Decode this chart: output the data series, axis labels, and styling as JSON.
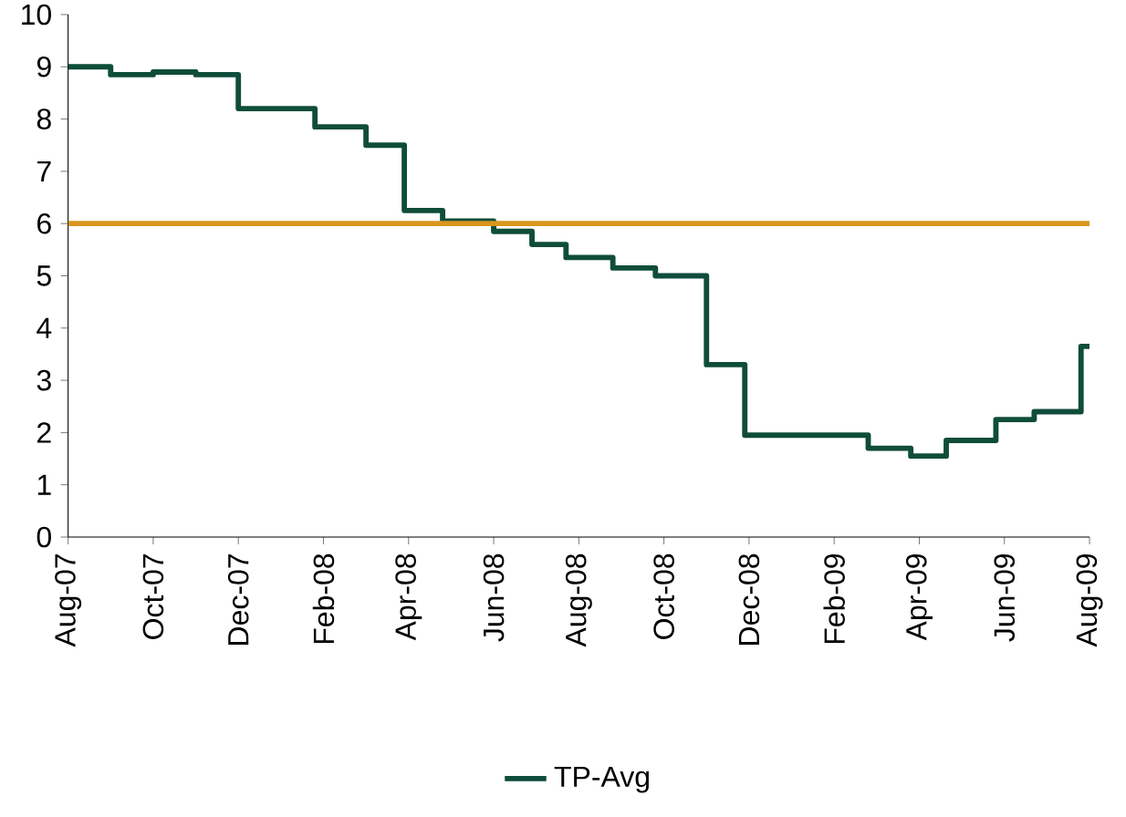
{
  "chart_data": {
    "type": "step",
    "xlim": [
      "2007-08",
      "2009-08"
    ],
    "ylim": [
      0,
      10
    ],
    "yticks": [
      0,
      1,
      2,
      3,
      4,
      5,
      6,
      7,
      8,
      9,
      10
    ],
    "xticks": [
      {
        "value": "2007-08",
        "label": "Aug-07"
      },
      {
        "value": "2007-10",
        "label": "Oct-07"
      },
      {
        "value": "2007-12",
        "label": "Dec-07"
      },
      {
        "value": "2008-02",
        "label": "Feb-08"
      },
      {
        "value": "2008-04",
        "label": "Apr-08"
      },
      {
        "value": "2008-06",
        "label": "Jun-08"
      },
      {
        "value": "2008-08",
        "label": "Aug-08"
      },
      {
        "value": "2008-10",
        "label": "Oct-08"
      },
      {
        "value": "2008-12",
        "label": "Dec-08"
      },
      {
        "value": "2009-02",
        "label": "Feb-09"
      },
      {
        "value": "2009-04",
        "label": "Apr-09"
      },
      {
        "value": "2009-06",
        "label": "Jun-09"
      },
      {
        "value": "2009-08",
        "label": "Aug-09"
      }
    ],
    "legend": "bottom",
    "grid": false,
    "marker": "none",
    "line_style": "solid",
    "series": [
      {
        "name": "TP-Avg",
        "color": "#0f4d3a",
        "x": [
          "2007-08-01",
          "2007-09-01",
          "2007-10-01",
          "2007-11-01",
          "2007-12-01",
          "2008-01-25",
          "2008-03-01",
          "2008-03-28",
          "2008-04-25",
          "2008-06-01",
          "2008-06-28",
          "2008-07-22",
          "2008-08-25",
          "2008-09-25",
          "2008-11-01",
          "2008-11-28",
          "2009-02-25",
          "2009-03-25",
          "2009-04-20",
          "2009-05-25",
          "2009-06-22",
          "2009-07-25",
          "2009-08-01"
        ],
        "values": [
          9.0,
          8.85,
          8.9,
          8.85,
          8.2,
          7.85,
          7.5,
          6.25,
          6.05,
          5.85,
          5.6,
          5.35,
          5.15,
          5.0,
          3.3,
          1.95,
          1.7,
          1.55,
          1.85,
          2.25,
          2.4,
          3.65,
          3.65
        ]
      },
      {
        "type": "line",
        "color": "#d9961e",
        "x": [
          "2007-08-01",
          "2009-08-01"
        ],
        "values": [
          6,
          6
        ]
      }
    ]
  }
}
